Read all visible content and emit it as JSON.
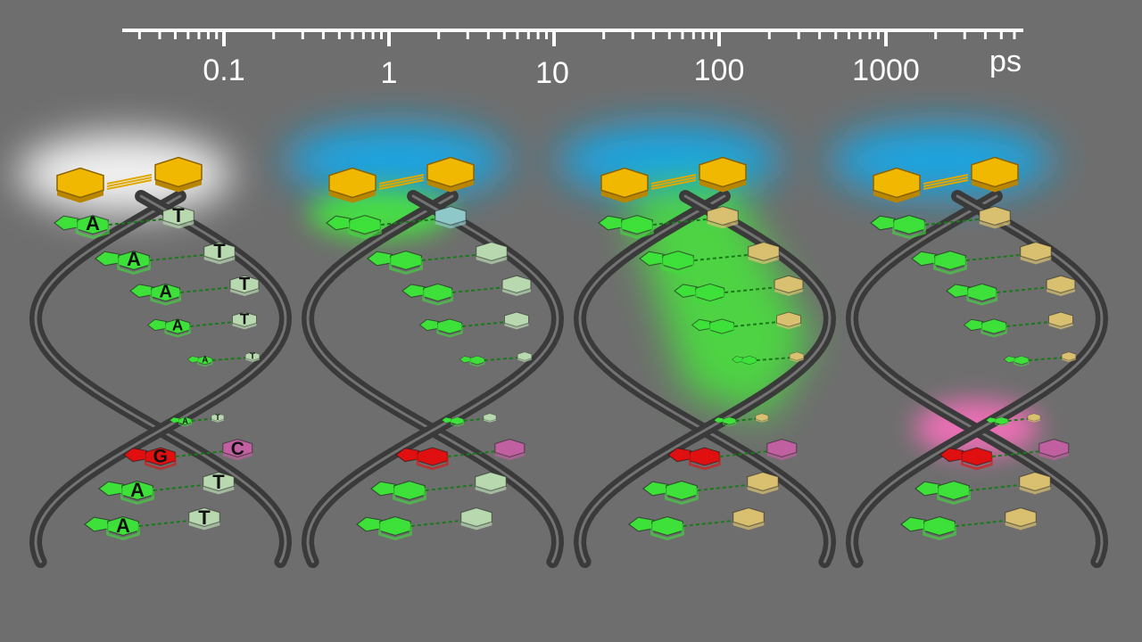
{
  "time_axis": {
    "unit": "ps",
    "ticks": [
      "0.1",
      "1",
      "10",
      "100",
      "1000"
    ],
    "scale": "log"
  },
  "strand_sequence": {
    "upper_pairs": [
      [
        "A",
        "T"
      ],
      [
        "A",
        "T"
      ],
      [
        "A",
        "T"
      ],
      [
        "A",
        "T"
      ],
      [
        "A",
        "T"
      ]
    ],
    "lower_pairs": [
      [
        "A",
        "T"
      ],
      [
        "G",
        "C"
      ],
      [
        "A",
        "T"
      ],
      [
        "A",
        "T"
      ]
    ]
  },
  "panels": [
    {
      "label_letters": true,
      "glow": "white",
      "donor_glow": "none"
    },
    {
      "label_letters": false,
      "glow": "blue",
      "donor_glow": "green-small"
    },
    {
      "label_letters": false,
      "glow": "blue",
      "donor_glow": "green-large"
    },
    {
      "label_letters": false,
      "glow": "blue",
      "donor_glow": "pink"
    }
  ],
  "colors": {
    "background": "#6e6e6e",
    "axis": "#ffffff",
    "adenine": "#3ee03a",
    "thymine": "#b8d8b0",
    "guanine": "#e01010",
    "cytosine": "#c060a0",
    "linker": "#f0b800",
    "glow_white": "#ffffff",
    "glow_blue": "#19a8e8",
    "glow_green": "#40ff30",
    "glow_pink": "#ff70c0",
    "backbone": "#3a3a3a"
  }
}
